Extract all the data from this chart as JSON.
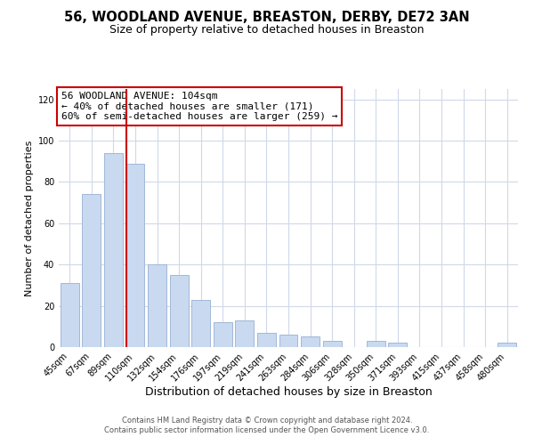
{
  "title1": "56, WOODLAND AVENUE, BREASTON, DERBY, DE72 3AN",
  "title2": "Size of property relative to detached houses in Breaston",
  "xlabel": "Distribution of detached houses by size in Breaston",
  "ylabel": "Number of detached properties",
  "bar_labels": [
    "45sqm",
    "67sqm",
    "89sqm",
    "110sqm",
    "132sqm",
    "154sqm",
    "176sqm",
    "197sqm",
    "219sqm",
    "241sqm",
    "263sqm",
    "284sqm",
    "306sqm",
    "328sqm",
    "350sqm",
    "371sqm",
    "393sqm",
    "415sqm",
    "437sqm",
    "458sqm",
    "480sqm"
  ],
  "bar_heights": [
    31,
    74,
    94,
    89,
    40,
    35,
    23,
    12,
    13,
    7,
    6,
    5,
    3,
    0,
    3,
    2,
    0,
    0,
    0,
    0,
    2
  ],
  "bar_color": "#c9d9f0",
  "bar_edge_color": "#a0b8d8",
  "vline_color": "#cc0000",
  "vline_index": 3,
  "annotation_title": "56 WOODLAND AVENUE: 104sqm",
  "annotation_line1": "← 40% of detached houses are smaller (171)",
  "annotation_line2": "60% of semi-detached houses are larger (259) →",
  "annotation_box_color": "#ffffff",
  "annotation_box_edge": "#cc0000",
  "ylim": [
    0,
    125
  ],
  "yticks": [
    0,
    20,
    40,
    60,
    80,
    100,
    120
  ],
  "footer1": "Contains HM Land Registry data © Crown copyright and database right 2024.",
  "footer2": "Contains public sector information licensed under the Open Government Licence v3.0.",
  "bg_color": "#ffffff",
  "grid_color": "#d0d8e8",
  "title1_fontsize": 10.5,
  "title2_fontsize": 9,
  "xlabel_fontsize": 9,
  "ylabel_fontsize": 8,
  "tick_fontsize": 7,
  "footer_fontsize": 6,
  "ann_fontsize": 8
}
